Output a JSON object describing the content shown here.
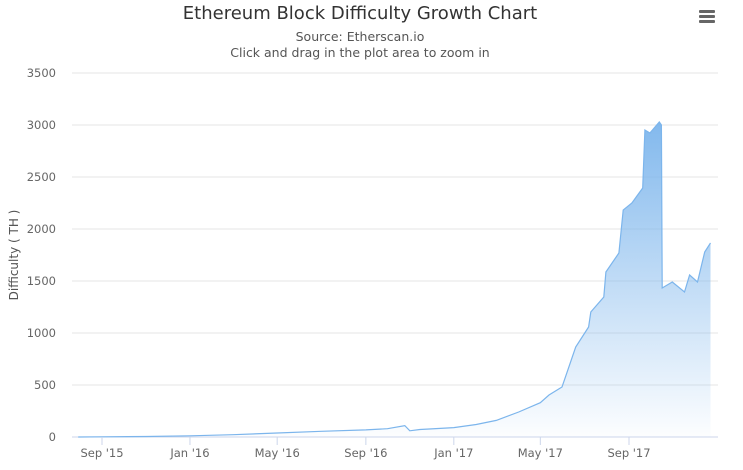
{
  "chart_data": {
    "type": "area",
    "title": "Ethereum Block Difficulty Growth Chart",
    "subtitle": "Source: Etherscan.io",
    "hint": "Click and drag in the plot area to zoom in",
    "xlabel": "",
    "ylabel": "Difficulty ( TH )",
    "ylim": [
      0,
      3500
    ],
    "yticks": [
      0,
      500,
      1000,
      1500,
      2000,
      2500,
      3000,
      3500
    ],
    "xticks": [
      {
        "date": "2015-09-01",
        "label": "Sep '15"
      },
      {
        "date": "2016-01-01",
        "label": "Jan '16"
      },
      {
        "date": "2016-05-01",
        "label": "May '16"
      },
      {
        "date": "2016-09-01",
        "label": "Sep '16"
      },
      {
        "date": "2017-01-01",
        "label": "Jan '17"
      },
      {
        "date": "2017-05-01",
        "label": "May '17"
      },
      {
        "date": "2017-09-01",
        "label": "Sep '17"
      }
    ],
    "grid": true,
    "legend": "none",
    "color": "#7cb5ec",
    "series": [
      {
        "points": [
          [
            "2015-07-30",
            0.1
          ],
          [
            "2015-09-01",
            2
          ],
          [
            "2015-11-01",
            5
          ],
          [
            "2016-01-01",
            12
          ],
          [
            "2016-03-01",
            22
          ],
          [
            "2016-05-01",
            38
          ],
          [
            "2016-07-01",
            55
          ],
          [
            "2016-09-01",
            68
          ],
          [
            "2016-10-01",
            80
          ],
          [
            "2016-10-25",
            110
          ],
          [
            "2016-11-01",
            60
          ],
          [
            "2016-11-15",
            72
          ],
          [
            "2016-12-01",
            78
          ],
          [
            "2017-01-01",
            90
          ],
          [
            "2017-02-01",
            120
          ],
          [
            "2017-03-01",
            160
          ],
          [
            "2017-04-01",
            240
          ],
          [
            "2017-05-01",
            330
          ],
          [
            "2017-05-13",
            404
          ],
          [
            "2017-05-31",
            481
          ],
          [
            "2017-06-19",
            865
          ],
          [
            "2017-07-07",
            1058
          ],
          [
            "2017-07-10",
            1202
          ],
          [
            "2017-07-28",
            1346
          ],
          [
            "2017-07-31",
            1587
          ],
          [
            "2017-08-18",
            1769
          ],
          [
            "2017-08-24",
            2183
          ],
          [
            "2017-09-05",
            2250
          ],
          [
            "2017-09-20",
            2394
          ],
          [
            "2017-09-23",
            2952
          ],
          [
            "2017-09-30",
            2923
          ],
          [
            "2017-10-13",
            3029
          ],
          [
            "2017-10-16",
            3000
          ],
          [
            "2017-10-17",
            1433
          ],
          [
            "2017-10-31",
            1490
          ],
          [
            "2017-11-17",
            1394
          ],
          [
            "2017-11-24",
            1558
          ],
          [
            "2017-12-05",
            1490
          ],
          [
            "2017-12-15",
            1779
          ],
          [
            "2017-12-23",
            1865
          ]
        ]
      }
    ]
  },
  "menu_icon": "hamburger-menu-icon"
}
